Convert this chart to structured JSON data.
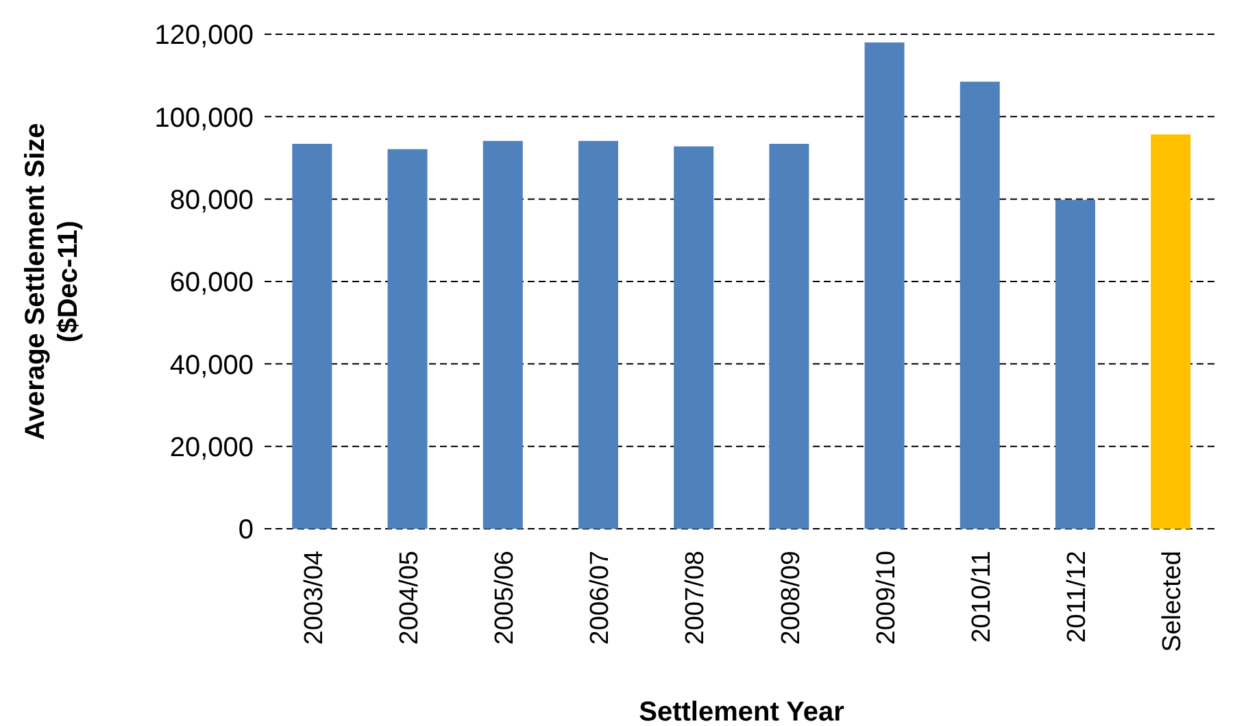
{
  "chart_data": {
    "type": "bar",
    "xlabel": "Settlement Year",
    "ylabel": "Average Settlement Size\n($Dec-11)",
    "categories": [
      "2003/04",
      "2004/05",
      "2005/06",
      "2006/07",
      "2007/08",
      "2008/09",
      "2009/10",
      "2010/11",
      "2011/12",
      "Selected"
    ],
    "values": [
      93400,
      92100,
      94100,
      94100,
      92800,
      93400,
      118000,
      108500,
      79800,
      95700
    ],
    "colors": [
      "#4f81bd",
      "#4f81bd",
      "#4f81bd",
      "#4f81bd",
      "#4f81bd",
      "#4f81bd",
      "#4f81bd",
      "#4f81bd",
      "#4f81bd",
      "#ffc000"
    ],
    "ylim": [
      0,
      120000
    ],
    "yticks": [
      0,
      {
        "value": 20000,
        "label": "20,000"
      },
      {
        "value": 40000,
        "label": "40,000"
      },
      {
        "value": 60000,
        "label": "60,000"
      },
      {
        "value": 80000,
        "label": "80,000"
      },
      {
        "value": 100000,
        "label": "100,000"
      },
      {
        "value": 120000,
        "label": "120,000"
      }
    ],
    "grid": "y"
  }
}
